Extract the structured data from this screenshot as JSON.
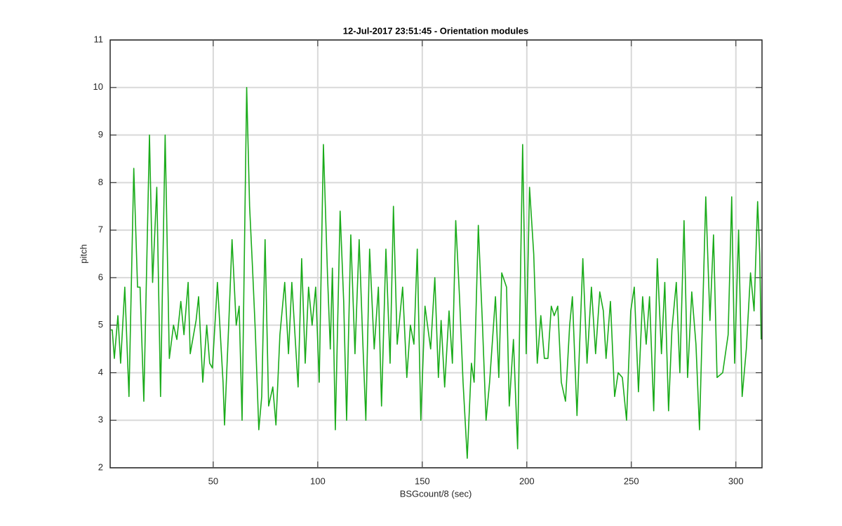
{
  "chart_data": {
    "type": "line",
    "title": "12-Jul-2017 23:51:45 - Orientation modules",
    "x_label": "BSGcount/8 (sec)",
    "y_label": "pitch",
    "xlim": [
      0.7,
      312.5
    ],
    "ylim": [
      2,
      11
    ],
    "xticks": [
      50,
      100,
      150,
      200,
      250,
      300
    ],
    "yticks": [
      2,
      3,
      4,
      5,
      6,
      7,
      8,
      9,
      10,
      11
    ],
    "grid": true,
    "series": [
      {
        "name": "pitch",
        "color": "#1aab1a",
        "x": [
          1,
          1.7,
          2.7,
          4.4,
          5.7,
          7.7,
          9.7,
          12,
          13.8,
          15,
          16.8,
          19.5,
          21,
          23,
          24.8,
          27,
          29,
          31,
          32.6,
          34.5,
          36,
          38,
          39,
          41.8,
          43,
          45,
          46.9,
          48.3,
          49.6,
          52,
          54.7,
          55.4,
          57.4,
          59,
          61,
          62.4,
          63.8,
          66,
          67.4,
          68.8,
          70.1,
          71.8,
          73.2,
          74.8,
          76.5,
          78.5,
          80,
          81.9,
          84.2,
          86,
          87.6,
          90.6,
          92.3,
          94,
          95.6,
          97.3,
          99,
          100.7,
          102.7,
          104.7,
          106,
          107,
          108.4,
          110.7,
          112.4,
          113.8,
          115.8,
          117.8,
          119.8,
          121.5,
          123,
          124.8,
          127,
          129,
          130.5,
          132.6,
          134.6,
          136.2,
          138,
          140.6,
          142.6,
          144.3,
          146,
          147.6,
          149.3,
          151.3,
          154,
          156,
          157.7,
          159,
          160.7,
          162.8,
          164.4,
          166,
          167.8,
          169.5,
          171.5,
          173.5,
          174.8,
          176.8,
          178.8,
          180.5,
          182.2,
          185,
          186.6,
          188,
          190.3,
          191.6,
          193.6,
          195.6,
          198,
          199.7,
          201.3,
          203.3,
          205,
          206.7,
          208.4,
          210.1,
          211.7,
          213.1,
          214.8,
          216.5,
          218.5,
          220.5,
          221.8,
          224,
          226.8,
          228.8,
          230.9,
          232.9,
          234.9,
          236.6,
          237.9,
          240,
          242,
          243.7,
          245.7,
          247.7,
          249.7,
          251.4,
          253.4,
          255.4,
          257.1,
          258.7,
          260.7,
          262.4,
          264.4,
          266,
          267.8,
          269.4,
          271.5,
          273.2,
          275.2,
          276.9,
          278.9,
          280.9,
          282.6,
          285.6,
          287.6,
          289.3,
          291,
          293.7,
          296.3,
          298,
          299.4,
          301.3,
          303,
          305,
          307,
          308.7,
          310.4,
          311.4,
          312.1
        ],
        "values": [
          4.9,
          4.9,
          4.3,
          5.2,
          4.2,
          5.8,
          3.5,
          8.3,
          5.8,
          5.8,
          3.4,
          9.0,
          5.9,
          7.9,
          3.5,
          9.0,
          4.3,
          5.0,
          4.7,
          5.5,
          4.8,
          5.9,
          4.4,
          5.1,
          5.6,
          3.8,
          5.0,
          4.2,
          4.1,
          5.9,
          3.8,
          2.9,
          5.0,
          6.8,
          5.0,
          5.4,
          3.0,
          10.0,
          7.5,
          6.2,
          4.9,
          2.8,
          3.5,
          6.8,
          3.3,
          3.7,
          2.9,
          4.8,
          5.9,
          4.4,
          5.9,
          3.7,
          6.4,
          4.2,
          5.8,
          5.0,
          5.8,
          3.8,
          8.8,
          6.0,
          4.5,
          6.2,
          2.8,
          7.4,
          5.5,
          3.0,
          6.9,
          4.4,
          6.8,
          4.7,
          3.0,
          6.6,
          4.5,
          5.8,
          3.3,
          6.6,
          4.2,
          7.5,
          4.6,
          5.8,
          3.9,
          5.0,
          4.6,
          6.6,
          3.0,
          5.4,
          4.5,
          6.0,
          3.9,
          5.1,
          3.7,
          5.3,
          4.2,
          7.2,
          5.6,
          3.8,
          2.2,
          4.2,
          3.8,
          7.1,
          5.0,
          3.0,
          3.8,
          5.6,
          3.9,
          6.1,
          5.8,
          3.3,
          4.7,
          2.4,
          8.8,
          4.4,
          7.9,
          6.5,
          4.2,
          5.2,
          4.3,
          4.3,
          5.4,
          5.2,
          5.4,
          3.8,
          3.4,
          5.0,
          5.6,
          3.1,
          6.4,
          4.2,
          5.8,
          4.4,
          5.7,
          5.3,
          4.3,
          5.5,
          3.5,
          4.0,
          3.9,
          3.0,
          5.3,
          5.8,
          3.6,
          5.6,
          4.6,
          5.6,
          3.2,
          6.4,
          4.4,
          5.9,
          3.2,
          4.9,
          5.9,
          4.0,
          7.2,
          3.9,
          5.7,
          4.6,
          2.8,
          7.7,
          5.1,
          6.9,
          3.9,
          4.0,
          4.8,
          7.7,
          4.2,
          7.0,
          3.5,
          4.5,
          6.1,
          5.3,
          7.6,
          6.5,
          4.7
        ]
      }
    ]
  }
}
